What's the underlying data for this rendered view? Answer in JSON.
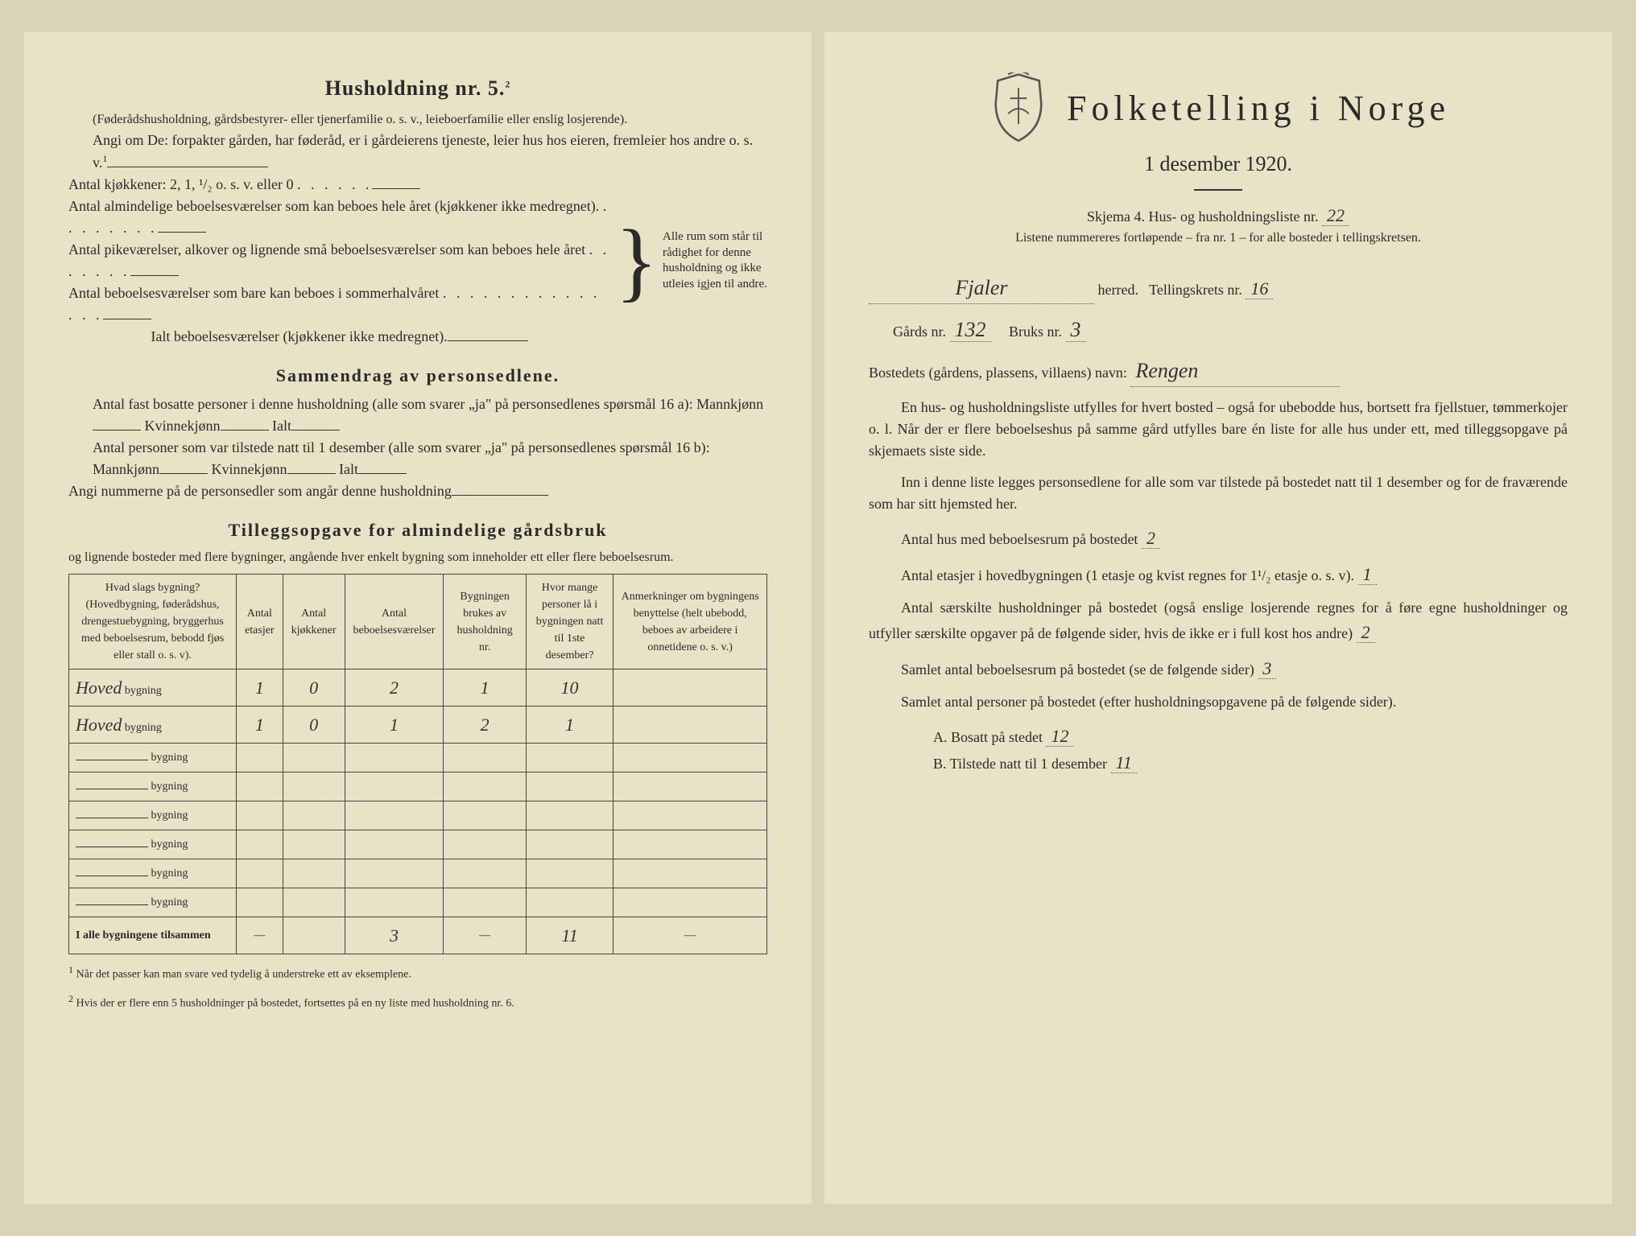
{
  "left": {
    "heading": "Husholdning nr. 5.",
    "heading_sup": "2",
    "sub1": "(Føderådshusholdning, gårdsbestyrer- eller tjenerfamilie o. s. v., leieboerfamilie eller enslig losjerende).",
    "sub2": "Angi om De:  forpakter gården, har føderåd, er i gårdeierens tjeneste, leier hus hos eieren, fremleier hos andre o. s. v.",
    "sub2_sup": "1",
    "kitchens": "Antal kjøkkener: 2, 1, ¹/₂ o. s. v. eller 0",
    "rooms1": "Antal almindelige beboelsesværelser som kan beboes hele året (kjøkkener ikke medregnet).",
    "rooms2": "Antal pikeværelser, alkover og lignende små beboelsesværelser som kan beboes hele året",
    "rooms3": "Antal beboelsesværelser som bare kan beboes i sommerhalvåret",
    "rooms_total": "Ialt beboelsesværelser  (kjøkkener ikke medregnet).",
    "brace_text": "Alle rum som står til rådighet for denne husholdning og ikke utleies igjen til andre.",
    "section2": "Sammendrag av personsedlene.",
    "s2_l1": "Antal fast bosatte personer i denne husholdning (alle som svarer „ja\" på personsedlenes spørsmål 16 a): Mannkjønn",
    "s2_kv": "Kvinnekjønn",
    "s2_ialt": "Ialt",
    "s2_l2": "Antal personer som var tilstede natt til 1 desember (alle som svarer „ja\" på personsedlenes spørsmål 16 b): Mannkjønn",
    "s2_l3": "Angi nummerne på de personsedler som angår denne husholdning",
    "section3": "Tilleggsopgave for almindelige gårdsbruk",
    "s3_sub": "og lignende bosteder med flere bygninger, angående hver enkelt bygning som inneholder ett eller flere beboelsesrum.",
    "table": {
      "headers": [
        "Hvad slags bygning?\n(Hovedbygning, føderådshus, drengestuebygning, bryggerhus med beboelsesrum, bebodd fjøs eller stall o. s. v).",
        "Antal etasjer",
        "Antal kjøkkener",
        "Antal beboelsesværelser",
        "Bygningen brukes av husholdning nr.",
        "Hvor mange personer lå i bygningen natt til 1ste desember?",
        "Anmerkninger om bygningens benyttelse (helt ubebodd, beboes av arbeidere i onnetidene o. s. v.)"
      ],
      "rows": [
        {
          "name": "Hoved",
          "etasjer": "1",
          "kjokken": "0",
          "beboelse": "2",
          "hushold": "1",
          "personer": "10",
          "anm": ""
        },
        {
          "name": "Hoved",
          "etasjer": "1",
          "kjokken": "0",
          "beboelse": "1",
          "hushold": "2",
          "personer": "1",
          "anm": ""
        }
      ],
      "total_label": "I alle bygningene tilsammen",
      "total": {
        "etasjer": "—",
        "kjokken": "",
        "beboelse": "3",
        "hushold": "—",
        "personer": "11",
        "anm": "—"
      }
    },
    "bygning_suffix": "bygning",
    "fn1": "Når det passer kan man svare ved tydelig å understreke ett av eksemplene.",
    "fn2": "Hvis der er flere enn 5 husholdninger på bostedet, fortsettes på en ny liste med husholdning nr. 6."
  },
  "right": {
    "title": "Folketelling i Norge",
    "date": "1 desember 1920.",
    "skjema": "Skjema 4.  Hus- og husholdningsliste nr.",
    "skjema_nr": "22",
    "listene": "Listene nummereres fortløpende – fra nr. 1 – for alle bosteder i tellingskretsen.",
    "herred": "Fjaler",
    "herred_label": "herred.",
    "tkrets_label": "Tellingskrets nr.",
    "tkrets": "16",
    "gard_label": "Gårds nr.",
    "gard": "132",
    "bruk_label": "Bruks nr.",
    "bruk": "3",
    "bosted_label": "Bostedets (gårdens, plassens, villaens) navn:",
    "bosted": "Rengen",
    "p1": "En hus- og husholdningsliste utfylles for hvert bosted – også for ubebodde hus, bortsett fra fjellstuer, tømmerkojer o. l.  Når der er flere beboelseshus på samme gård utfylles bare én liste for alle hus under ett, med tilleggsopgave på skjemaets siste side.",
    "p2": "Inn i denne liste legges personsedlene for alle som var tilstede på bostedet natt til 1 desember og for de fraværende som har sitt hjemsted her.",
    "q1": "Antal hus med beboelsesrum på bostedet",
    "q1v": "2",
    "q2a": "Antal etasjer i hovedbygningen (1 etasje og kvist regnes for 1¹/₂ etasje o. s. v).",
    "q2v": "1",
    "q3a": "Antal særskilte husholdninger på bostedet (også enslige losjerende regnes for å føre egne husholdninger og utfyller særskilte opgaver på de følgende sider, hvis de ikke er i full kost hos andre)",
    "q3v": "2",
    "q4": "Samlet antal beboelsesrum på bostedet (se de følgende sider)",
    "q4v": "3",
    "q5": "Samlet antal personer på bostedet (efter husholdningsopgavene på de følgende sider).",
    "qA": "A.  Bosatt på stedet",
    "qAv": "12",
    "qB": "B.  Tilstede natt til 1 desember",
    "qBv": "11"
  }
}
